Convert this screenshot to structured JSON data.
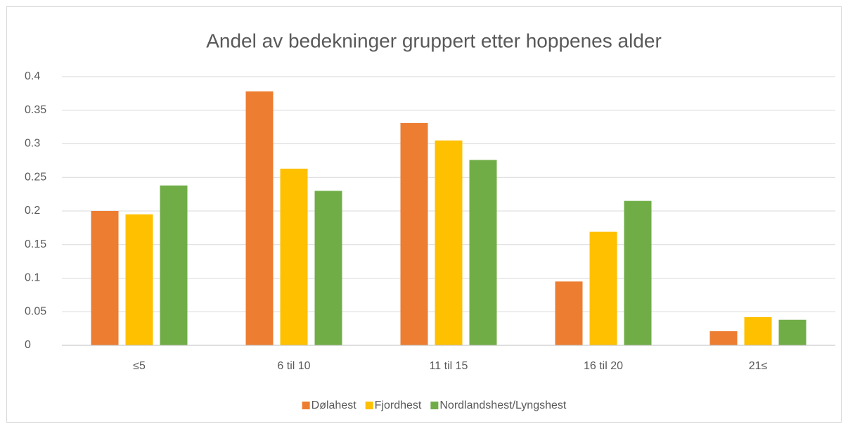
{
  "chart_data": {
    "type": "bar",
    "title": "Andel av bedekninger gruppert etter hoppenes alder",
    "categories": [
      "≤5",
      "6 til 10",
      "11 til 15",
      "16 til 20",
      "21≤"
    ],
    "series": [
      {
        "name": "Dølahest",
        "color": "#ed7d31",
        "values": [
          0.2,
          0.378,
          0.331,
          0.095,
          0.021
        ]
      },
      {
        "name": "Fjordhest",
        "color": "#ffc000",
        "values": [
          0.195,
          0.263,
          0.305,
          0.169,
          0.042
        ]
      },
      {
        "name": "Nordlandshest/Lyngshest",
        "color": "#70ad47",
        "values": [
          0.238,
          0.23,
          0.276,
          0.215,
          0.038
        ]
      }
    ],
    "ylim": [
      0,
      0.4
    ],
    "yticks": [
      0,
      0.05,
      0.1,
      0.15,
      0.2,
      0.25,
      0.3,
      0.35,
      0.4
    ],
    "grid": true,
    "legend": "bottom"
  }
}
